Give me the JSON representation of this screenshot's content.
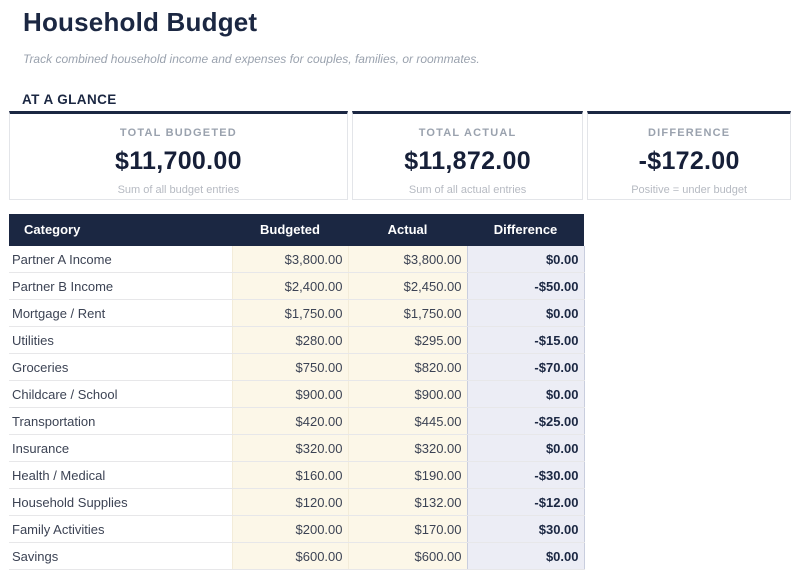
{
  "page": {
    "title": "Household Budget",
    "subtitle": "Track combined household income and expenses for couples, families, or roommates.",
    "section_heading": "AT A GLANCE"
  },
  "colors": {
    "accent_navy": "#1b2742",
    "money_cell_bg": "#fcf7e8",
    "difference_cell_bg": "#ecedf5"
  },
  "summary_cards": [
    {
      "label": "TOTAL BUDGETED",
      "value": "$11,700.00",
      "caption": "Sum of all budget entries"
    },
    {
      "label": "TOTAL ACTUAL",
      "value": "$11,872.00",
      "caption": "Sum of all actual entries"
    },
    {
      "label": "DIFFERENCE",
      "value": "-$172.00",
      "caption": "Positive = under budget"
    }
  ],
  "table": {
    "columns": [
      "Category",
      "Budgeted",
      "Actual",
      "Difference"
    ],
    "rows": [
      {
        "category": "Partner A Income",
        "budgeted": "$3,800.00",
        "actual": "$3,800.00",
        "difference": "$0.00"
      },
      {
        "category": "Partner B Income",
        "budgeted": "$2,400.00",
        "actual": "$2,450.00",
        "difference": "-$50.00"
      },
      {
        "category": "Mortgage / Rent",
        "budgeted": "$1,750.00",
        "actual": "$1,750.00",
        "difference": "$0.00"
      },
      {
        "category": "Utilities",
        "budgeted": "$280.00",
        "actual": "$295.00",
        "difference": "-$15.00"
      },
      {
        "category": "Groceries",
        "budgeted": "$750.00",
        "actual": "$820.00",
        "difference": "-$70.00"
      },
      {
        "category": "Childcare / School",
        "budgeted": "$900.00",
        "actual": "$900.00",
        "difference": "$0.00"
      },
      {
        "category": "Transportation",
        "budgeted": "$420.00",
        "actual": "$445.00",
        "difference": "-$25.00"
      },
      {
        "category": "Insurance",
        "budgeted": "$320.00",
        "actual": "$320.00",
        "difference": "$0.00"
      },
      {
        "category": "Health / Medical",
        "budgeted": "$160.00",
        "actual": "$190.00",
        "difference": "-$30.00"
      },
      {
        "category": "Household Supplies",
        "budgeted": "$120.00",
        "actual": "$132.00",
        "difference": "-$12.00"
      },
      {
        "category": "Family Activities",
        "budgeted": "$200.00",
        "actual": "$170.00",
        "difference": "$30.00"
      },
      {
        "category": "Savings",
        "budgeted": "$600.00",
        "actual": "$600.00",
        "difference": "$0.00"
      }
    ]
  }
}
